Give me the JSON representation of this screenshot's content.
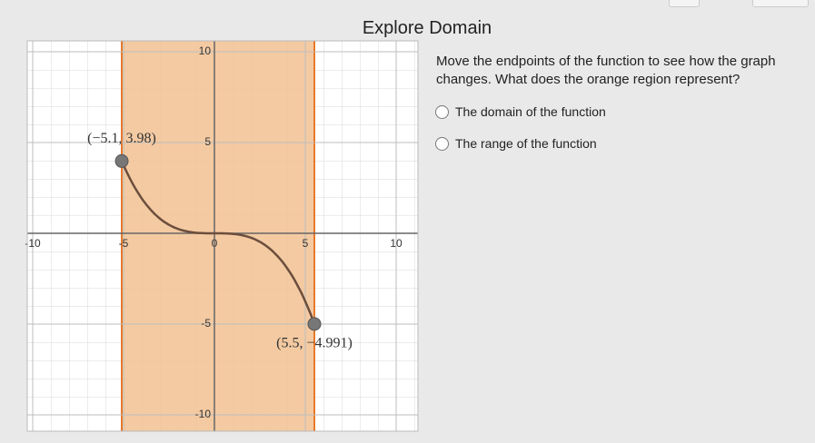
{
  "header": {
    "title": "Explore Domain"
  },
  "question": {
    "text": "Move the endpoints of the function to see how the graph changes.  What does the orange region represent?",
    "options": [
      "The domain of the function",
      "The range of the function"
    ]
  },
  "graph": {
    "xlim": [
      -10.3,
      11.2
    ],
    "ylim": [
      -10.9,
      10.6
    ],
    "xticks": [
      -10,
      -5,
      0,
      5,
      10
    ],
    "yticks": [
      -10,
      -5,
      5,
      10
    ],
    "region_color": "#f2c192",
    "border_color": "#e8792a",
    "curve_color": "#6b4e3d",
    "endpoints": [
      {
        "x": -5.1,
        "y": 3.98,
        "label": "(−5.1, 3.98)"
      },
      {
        "x": 5.5,
        "y": -4.991,
        "label": "(5.5, −4.991)"
      }
    ]
  }
}
